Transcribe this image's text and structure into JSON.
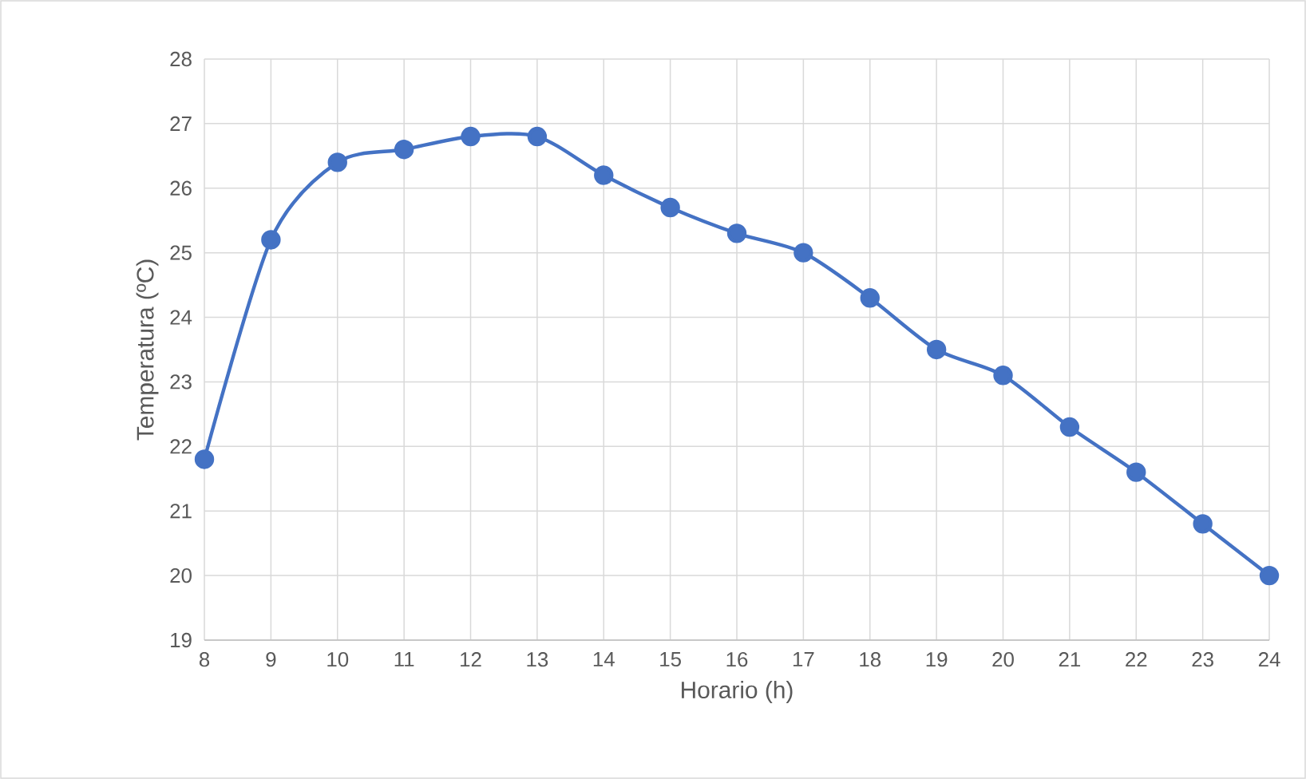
{
  "chart_data": {
    "type": "line",
    "xlabel": "Horario (h)",
    "ylabel": "Temperatura (ºC)",
    "x": [
      8,
      9,
      10,
      11,
      12,
      13,
      14,
      15,
      16,
      17,
      18,
      19,
      20,
      21,
      22,
      23,
      24
    ],
    "series": [
      {
        "color": "#4472c4",
        "values": [
          21.8,
          25.2,
          26.4,
          26.6,
          26.8,
          26.8,
          26.2,
          25.7,
          25.3,
          25.0,
          24.3,
          23.5,
          23.1,
          22.3,
          21.6,
          20.8,
          20.0
        ]
      }
    ],
    "xlim": [
      8,
      24
    ],
    "xticks": [
      8,
      9,
      10,
      11,
      12,
      13,
      14,
      15,
      16,
      17,
      18,
      19,
      20,
      21,
      22,
      23,
      24
    ],
    "ylim": [
      19,
      28
    ],
    "yticks": [
      19,
      20,
      21,
      22,
      23,
      24,
      25,
      26,
      27,
      28
    ],
    "grid": true,
    "marker": "circle",
    "line_style": "solid"
  }
}
